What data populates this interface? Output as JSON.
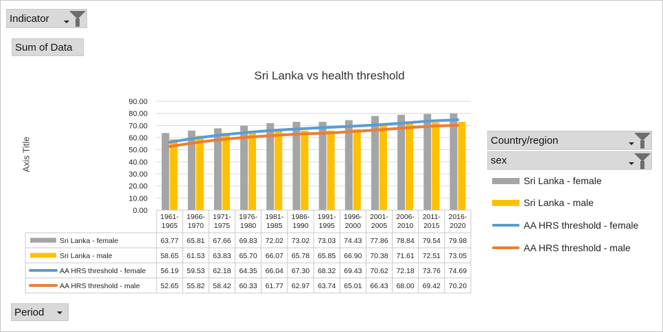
{
  "filters": {
    "indicator_label": "Indicator",
    "sum_label": "Sum of Data",
    "country_label": "Country/region",
    "sex_label": "sex",
    "period_label": "Period"
  },
  "colors": {
    "female_bar": "#a5a5a5",
    "male_bar": "#ffc000",
    "female_line": "#5b9bd5",
    "male_line": "#ed7d31",
    "grid": "#d9d9d9",
    "button_bg": "#d9d9d9"
  },
  "chart_data": {
    "type": "bar",
    "title": "Sri Lanka vs health threshold",
    "ylabel": "Axis Title",
    "xlabel": "",
    "ylim": [
      0,
      90
    ],
    "yticks": [
      "0.00",
      "10.00",
      "20.00",
      "30.00",
      "40.00",
      "50.00",
      "60.00",
      "70.00",
      "80.00",
      "90.00"
    ],
    "grid": true,
    "legend_position": "right",
    "categories": [
      "1961-1965",
      "1966-1970",
      "1971-1975",
      "1976-1980",
      "1981-1985",
      "1986-1990",
      "1991-1995",
      "1996-2000",
      "2001-2005",
      "2006-2010",
      "2011-2015",
      "2016-2020"
    ],
    "category_lines": [
      [
        "1961-",
        "1965"
      ],
      [
        "1966-",
        "1970"
      ],
      [
        "1971-",
        "1975"
      ],
      [
        "1976-",
        "1980"
      ],
      [
        "1981-",
        "1985"
      ],
      [
        "1986-",
        "1990"
      ],
      [
        "1991-",
        "1995"
      ],
      [
        "1996-",
        "2000"
      ],
      [
        "2001-",
        "2005"
      ],
      [
        "2006-",
        "2010"
      ],
      [
        "2011-",
        "2015"
      ],
      [
        "2016-",
        "2020"
      ]
    ],
    "series": [
      {
        "name": "Sri Lanka - female",
        "kind": "bar",
        "color": "#a5a5a5",
        "values": [
          63.77,
          65.81,
          67.66,
          69.83,
          72.02,
          73.02,
          73.03,
          74.43,
          77.86,
          78.84,
          79.54,
          79.98
        ],
        "labels": [
          "63.77",
          "65.81",
          "67.66",
          "69.83",
          "72.02",
          "73.02",
          "73.03",
          "74.43",
          "77.86",
          "78.84",
          "79.54",
          "79.98"
        ]
      },
      {
        "name": "Sri Lanka - male",
        "kind": "bar",
        "color": "#ffc000",
        "values": [
          58.65,
          61.53,
          63.83,
          65.7,
          66.07,
          65.78,
          65.85,
          66.9,
          70.38,
          71.61,
          72.51,
          73.05
        ],
        "labels": [
          "58.65",
          "61.53",
          "63.83",
          "65.70",
          "66.07",
          "65.78",
          "65.85",
          "66.90",
          "70.38",
          "71.61",
          "72.51",
          "73.05"
        ]
      },
      {
        "name": "AA HRS threshold - female",
        "kind": "line",
        "color": "#5b9bd5",
        "values": [
          56.19,
          59.53,
          62.18,
          64.35,
          66.04,
          67.3,
          68.32,
          69.43,
          70.62,
          72.18,
          73.76,
          74.69
        ],
        "labels": [
          "56.19",
          "59.53",
          "62.18",
          "64.35",
          "66.04",
          "67.30",
          "68.32",
          "69.43",
          "70.62",
          "72.18",
          "73.76",
          "74.69"
        ]
      },
      {
        "name": "AA HRS threshold - male",
        "kind": "line",
        "color": "#ed7d31",
        "values": [
          52.65,
          55.82,
          58.42,
          60.33,
          61.77,
          62.97,
          63.74,
          65.01,
          66.43,
          68.0,
          69.42,
          70.2
        ],
        "labels": [
          "52.65",
          "55.82",
          "58.42",
          "60.33",
          "61.77",
          "62.97",
          "63.74",
          "65.01",
          "66.43",
          "68.00",
          "69.42",
          "70.20"
        ]
      }
    ]
  }
}
